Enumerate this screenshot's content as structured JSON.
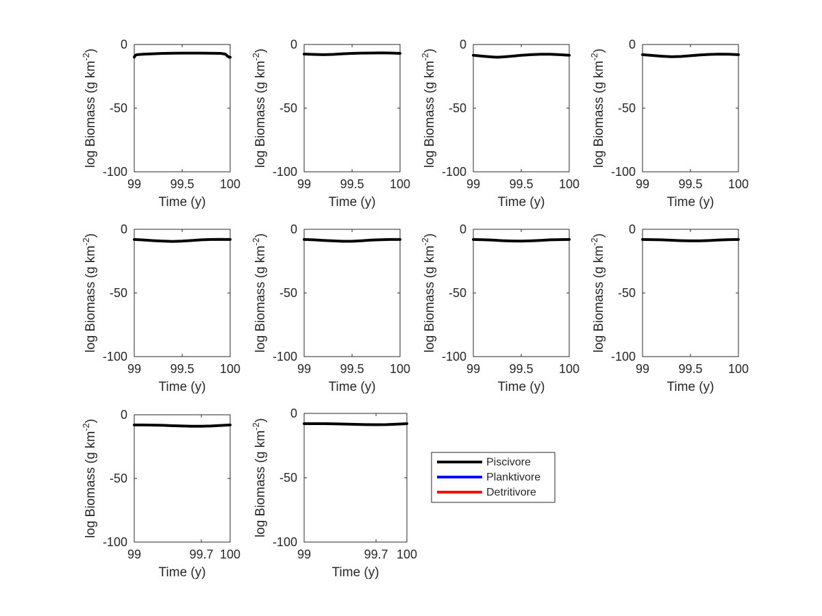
{
  "chart_data": [
    {
      "type": "line",
      "xlabel": "Time (y)",
      "ylabel_prefix": "log Biomass (g km",
      "ylabel_exponent": "-2",
      "ylabel_suffix": ")",
      "xlim": [
        99,
        100
      ],
      "ylim": [
        -100,
        0
      ],
      "xticks": [
        99,
        99.5,
        100
      ],
      "xtick_labels": [
        "99",
        "99.5",
        "100"
      ],
      "yticks": [
        -100,
        -50,
        0
      ],
      "ytick_labels": [
        "-100",
        "-50",
        "0"
      ],
      "series": [
        {
          "name": "Piscivore",
          "color": "#000000",
          "x": [
            99,
            99.01,
            99.03,
            99.1,
            99.3,
            99.5,
            99.7,
            99.9,
            99.95,
            99.97,
            99.99,
            100
          ],
          "y": [
            -10,
            -8.5,
            -8,
            -7.6,
            -7,
            -6.8,
            -6.8,
            -7,
            -7.5,
            -9,
            -10,
            -10
          ]
        }
      ]
    },
    {
      "type": "line",
      "xlabel": "Time (y)",
      "ylabel_prefix": "log Biomass (g km",
      "ylabel_exponent": "-2",
      "ylabel_suffix": ")",
      "xlim": [
        99,
        100
      ],
      "ylim": [
        -100,
        0
      ],
      "xticks": [
        99,
        99.5,
        100
      ],
      "xtick_labels": [
        "99",
        "99.5",
        "100"
      ],
      "yticks": [
        -100,
        -50,
        0
      ],
      "ytick_labels": [
        "-100",
        "-50",
        "0"
      ],
      "series": [
        {
          "name": "Piscivore",
          "color": "#000000",
          "x": [
            99,
            99.1,
            99.2,
            99.3,
            99.4,
            99.5,
            99.6,
            99.7,
            99.8,
            99.9,
            100
          ],
          "y": [
            -7.5,
            -7.8,
            -8,
            -7.8,
            -7.3,
            -7,
            -6.8,
            -6.7,
            -6.6,
            -6.7,
            -7
          ]
        }
      ]
    },
    {
      "type": "line",
      "xlabel": "Time (y)",
      "ylabel_prefix": "log Biomass (g km",
      "ylabel_exponent": "-2",
      "ylabel_suffix": ")",
      "xlim": [
        99,
        100
      ],
      "ylim": [
        -100,
        0
      ],
      "xticks": [
        99,
        99.5,
        100
      ],
      "xtick_labels": [
        "99",
        "99.5",
        "100"
      ],
      "yticks": [
        -100,
        -50,
        0
      ],
      "ytick_labels": [
        "-100",
        "-50",
        "0"
      ],
      "series": [
        {
          "name": "Piscivore",
          "color": "#000000",
          "x": [
            99,
            99.1,
            99.2,
            99.25,
            99.3,
            99.4,
            99.5,
            99.6,
            99.7,
            99.8,
            99.9,
            100
          ],
          "y": [
            -8.5,
            -9.2,
            -9.8,
            -10,
            -9.8,
            -9.2,
            -8.5,
            -8,
            -7.7,
            -7.7,
            -8,
            -8.5
          ]
        }
      ]
    },
    {
      "type": "line",
      "xlabel": "Time (y)",
      "ylabel_prefix": "log Biomass (g km",
      "ylabel_exponent": "-2",
      "ylabel_suffix": ")",
      "xlim": [
        99,
        100
      ],
      "ylim": [
        -100,
        0
      ],
      "xticks": [
        99,
        99.5,
        100
      ],
      "xtick_labels": [
        "99",
        "99.5",
        "100"
      ],
      "yticks": [
        -100,
        -50,
        0
      ],
      "ytick_labels": [
        "-100",
        "-50",
        "0"
      ],
      "series": [
        {
          "name": "Piscivore",
          "color": "#000000",
          "x": [
            99,
            99.1,
            99.2,
            99.3,
            99.4,
            99.5,
            99.6,
            99.7,
            99.8,
            99.9,
            100
          ],
          "y": [
            -8,
            -8.6,
            -9.2,
            -9.6,
            -9.4,
            -8.8,
            -8.2,
            -7.8,
            -7.6,
            -7.7,
            -8
          ]
        }
      ]
    },
    {
      "type": "line",
      "xlabel": "Time (y)",
      "ylabel_prefix": "log Biomass (g km",
      "ylabel_exponent": "-2",
      "ylabel_suffix": ")",
      "xlim": [
        99,
        100
      ],
      "ylim": [
        -100,
        0
      ],
      "xticks": [
        99,
        99.5,
        100
      ],
      "xtick_labels": [
        "99",
        "99.5",
        "100"
      ],
      "yticks": [
        -100,
        -50,
        0
      ],
      "ytick_labels": [
        "-100",
        "-50",
        "0"
      ],
      "series": [
        {
          "name": "Piscivore",
          "color": "#000000",
          "x": [
            99,
            99.1,
            99.2,
            99.3,
            99.4,
            99.5,
            99.6,
            99.7,
            99.8,
            99.9,
            100
          ],
          "y": [
            -8,
            -8.4,
            -8.9,
            -9.3,
            -9.5,
            -9.3,
            -8.8,
            -8.3,
            -8,
            -7.9,
            -8
          ]
        }
      ]
    },
    {
      "type": "line",
      "xlabel": "Time (y)",
      "ylabel_prefix": "log Biomass (g km",
      "ylabel_exponent": "-2",
      "ylabel_suffix": ")",
      "xlim": [
        99,
        100
      ],
      "ylim": [
        -100,
        0
      ],
      "xticks": [
        99,
        99.5,
        100
      ],
      "xtick_labels": [
        "99",
        "99.5",
        "100"
      ],
      "yticks": [
        -100,
        -50,
        0
      ],
      "ytick_labels": [
        "-100",
        "-50",
        "0"
      ],
      "series": [
        {
          "name": "Piscivore",
          "color": "#000000",
          "x": [
            99,
            99.1,
            99.2,
            99.3,
            99.4,
            99.5,
            99.6,
            99.7,
            99.8,
            99.9,
            100
          ],
          "y": [
            -8,
            -8.3,
            -8.7,
            -9.1,
            -9.4,
            -9.4,
            -9,
            -8.5,
            -8.2,
            -8,
            -8
          ]
        }
      ]
    },
    {
      "type": "line",
      "xlabel": "Time (y)",
      "ylabel_prefix": "log Biomass (g km",
      "ylabel_exponent": "-2",
      "ylabel_suffix": ")",
      "xlim": [
        99,
        100
      ],
      "ylim": [
        -100,
        0
      ],
      "xticks": [
        99,
        99.5,
        100
      ],
      "xtick_labels": [
        "99",
        "99.5",
        "100"
      ],
      "yticks": [
        -100,
        -50,
        0
      ],
      "ytick_labels": [
        "-100",
        "-50",
        "0"
      ],
      "series": [
        {
          "name": "Piscivore",
          "color": "#000000",
          "x": [
            99,
            99.1,
            99.2,
            99.3,
            99.4,
            99.5,
            99.6,
            99.7,
            99.8,
            99.9,
            100
          ],
          "y": [
            -8,
            -8.2,
            -8.5,
            -8.9,
            -9.2,
            -9.3,
            -9.1,
            -8.7,
            -8.3,
            -8.1,
            -8
          ]
        }
      ]
    },
    {
      "type": "line",
      "xlabel": "Time (y)",
      "ylabel_prefix": "log Biomass (g km",
      "ylabel_exponent": "-2",
      "ylabel_suffix": ")",
      "xlim": [
        99,
        100
      ],
      "ylim": [
        -100,
        0
      ],
      "xticks": [
        99,
        99.5,
        100
      ],
      "xtick_labels": [
        "99",
        "99.5",
        "100"
      ],
      "yticks": [
        -100,
        -50,
        0
      ],
      "ytick_labels": [
        "-100",
        "-50",
        "0"
      ],
      "series": [
        {
          "name": "Piscivore",
          "color": "#000000",
          "x": [
            99,
            99.1,
            99.2,
            99.3,
            99.4,
            99.5,
            99.6,
            99.7,
            99.8,
            99.9,
            100
          ],
          "y": [
            -8,
            -8.1,
            -8.3,
            -8.6,
            -8.9,
            -9.1,
            -9.1,
            -8.8,
            -8.4,
            -8.1,
            -8
          ]
        }
      ]
    },
    {
      "type": "line",
      "xlabel": "Time (y)",
      "ylabel_prefix": "log Biomass (g km",
      "ylabel_exponent": "-2",
      "ylabel_suffix": ")",
      "xlim": [
        99,
        100
      ],
      "ylim": [
        -100,
        0
      ],
      "xticks": [
        99,
        99.7,
        100
      ],
      "xtick_labels": [
        "99",
        "99.7",
        "100"
      ],
      "yticks": [
        -100,
        -50,
        0
      ],
      "ytick_labels": [
        "-100",
        "-50",
        "0"
      ],
      "series": [
        {
          "name": "Piscivore",
          "color": "#000000",
          "x": [
            99,
            99.1,
            99.2,
            99.3,
            99.4,
            99.5,
            99.6,
            99.7,
            99.8,
            99.9,
            100
          ],
          "y": [
            -8,
            -8,
            -8.1,
            -8.3,
            -8.6,
            -8.8,
            -9,
            -9,
            -8.8,
            -8.4,
            -8
          ]
        }
      ]
    },
    {
      "type": "line",
      "xlabel": "Time (y)",
      "ylabel_prefix": "log Biomass (g km",
      "ylabel_exponent": "-2",
      "ylabel_suffix": ")",
      "xlim": [
        99,
        100
      ],
      "ylim": [
        -100,
        0
      ],
      "xticks": [
        99,
        99.7,
        100
      ],
      "xtick_labels": [
        "99",
        "99.7",
        "100"
      ],
      "yticks": [
        -100,
        -50,
        0
      ],
      "ytick_labels": [
        "-100",
        "-50",
        "0"
      ],
      "series": [
        {
          "name": "Piscivore",
          "color": "#000000",
          "x": [
            99,
            99.1,
            99.2,
            99.3,
            99.4,
            99.5,
            99.6,
            99.7,
            99.8,
            99.9,
            100
          ],
          "y": [
            -8,
            -8,
            -8,
            -8.1,
            -8.3,
            -8.5,
            -8.7,
            -8.8,
            -8.7,
            -8.4,
            -8
          ]
        }
      ]
    }
  ],
  "legend": {
    "placement": "bottom-right",
    "entries": [
      {
        "label": "Piscivore",
        "color": "#000000"
      },
      {
        "label": "Planktivore",
        "color": "#0000ff"
      },
      {
        "label": "Detritivore",
        "color": "#ff0000"
      }
    ]
  }
}
